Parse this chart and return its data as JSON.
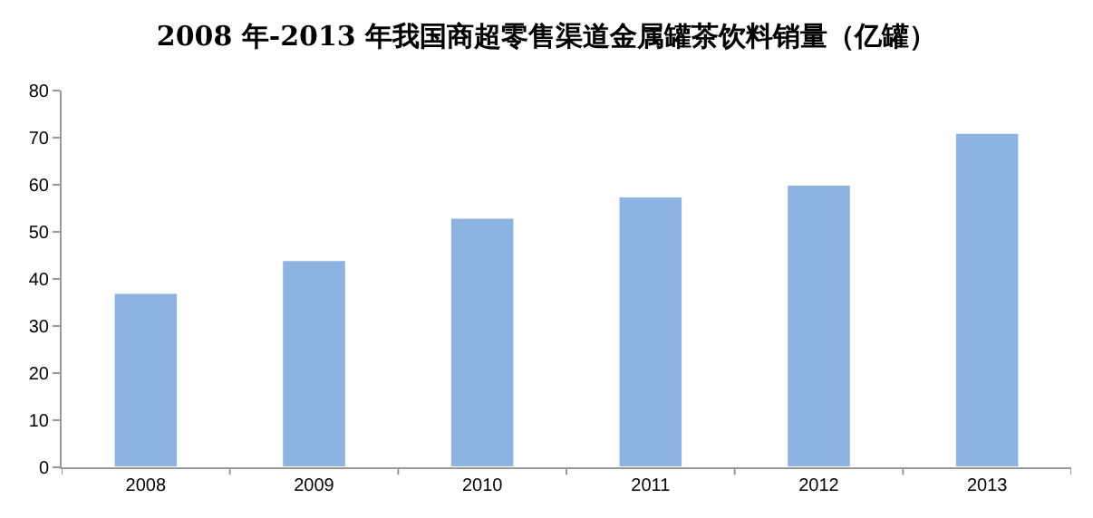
{
  "chart_data": {
    "type": "bar",
    "title": "2008 年-2013 年我国商超零售渠道金属罐茶饮料销量（亿罐）",
    "categories": [
      "2008",
      "2009",
      "2010",
      "2011",
      "2012",
      "2013"
    ],
    "values": [
      37,
      44,
      53,
      57.5,
      60,
      71
    ],
    "color": "#8db3e2",
    "ylim": [
      0,
      80
    ],
    "yticks": [
      0,
      10,
      20,
      30,
      40,
      50,
      60,
      70,
      80
    ]
  }
}
